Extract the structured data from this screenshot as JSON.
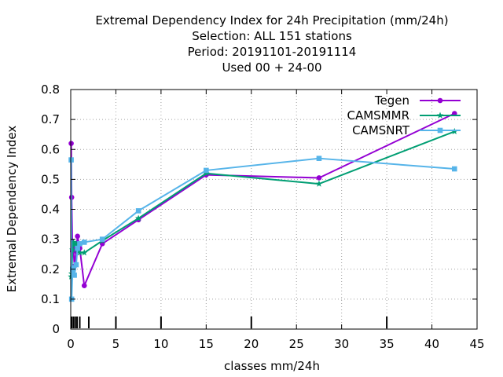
{
  "chart_data": {
    "type": "line",
    "title_lines": [
      "Extremal Dependency Index  for 24h Precipitation (mm/24h)",
      "Selection: ALL    151 stations",
      "Period: 20191101-20191114",
      "Used  00 + 24-00"
    ],
    "xlabel": "classes mm/24h",
    "ylabel": "Extremal Dependency Index",
    "xlim": [
      0,
      45
    ],
    "ylim": [
      0,
      0.8
    ],
    "x_ticks": [
      "0",
      "5",
      "10",
      "15",
      "20",
      "25",
      "30",
      "35",
      "40",
      "45"
    ],
    "y_ticks": [
      "0",
      "0.1",
      "0.2",
      "0.3",
      "0.4",
      "0.5",
      "0.6",
      "0.7",
      "0.8"
    ],
    "grid": true,
    "legend_position": "top-right",
    "class_marks": [
      0.1,
      0.3,
      0.5,
      0.7,
      1,
      2,
      5,
      10,
      20,
      35
    ],
    "series": [
      {
        "name": "Tegen",
        "color": "#9400d3",
        "marker": "circle",
        "points": [
          [
            0.05,
            0.62
          ],
          [
            0.1,
            0.44
          ],
          [
            0.2,
            0.26
          ],
          [
            0.3,
            0.27
          ],
          [
            0.4,
            0.21
          ],
          [
            0.6,
            0.26
          ],
          [
            0.75,
            0.31
          ],
          [
            1.0,
            0.27
          ],
          [
            1.5,
            0.145
          ],
          [
            3.5,
            0.285
          ],
          [
            7.5,
            0.365
          ],
          [
            15,
            0.515
          ],
          [
            27.5,
            0.505
          ],
          [
            42.5,
            0.72
          ]
        ]
      },
      {
        "name": "CAMSMMR",
        "color": "#009e73",
        "marker": "star",
        "points": [
          [
            0.05,
            0.175
          ],
          [
            0.1,
            0.185
          ],
          [
            0.2,
            0.265
          ],
          [
            0.3,
            0.29
          ],
          [
            0.4,
            0.28
          ],
          [
            0.6,
            0.285
          ],
          [
            0.75,
            0.265
          ],
          [
            1.0,
            0.255
          ],
          [
            1.5,
            0.255
          ],
          [
            3.5,
            0.295
          ],
          [
            7.5,
            0.37
          ],
          [
            15,
            0.52
          ],
          [
            27.5,
            0.485
          ],
          [
            42.5,
            0.66
          ]
        ]
      },
      {
        "name": "CAMSNRT",
        "color": "#56b4e9",
        "marker": "square",
        "points": [
          [
            0.05,
            0.565
          ],
          [
            0.1,
            0.1
          ],
          [
            0.2,
            0.2
          ],
          [
            0.3,
            0.205
          ],
          [
            0.4,
            0.18
          ],
          [
            0.6,
            0.215
          ],
          [
            0.75,
            0.27
          ],
          [
            1.0,
            0.285
          ],
          [
            1.5,
            0.29
          ],
          [
            3.5,
            0.3
          ],
          [
            7.5,
            0.395
          ],
          [
            15,
            0.53
          ],
          [
            27.5,
            0.57
          ],
          [
            42.5,
            0.535
          ]
        ]
      }
    ]
  }
}
